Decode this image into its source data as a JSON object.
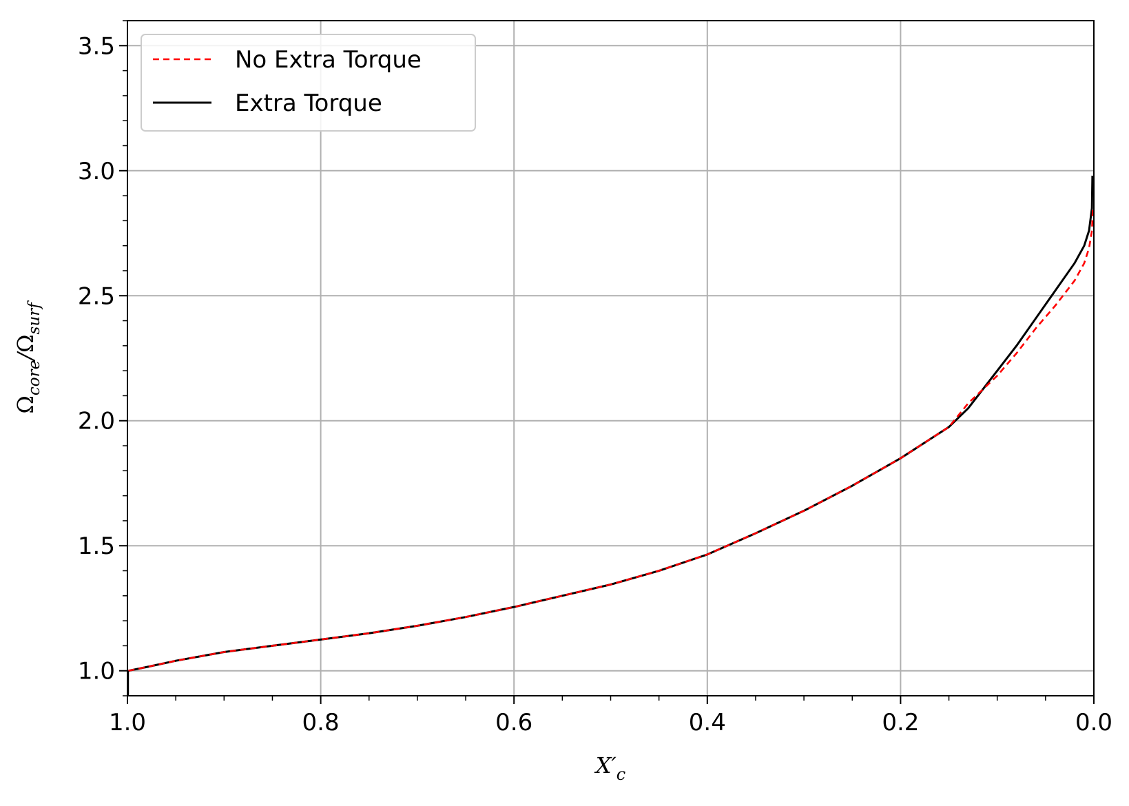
{
  "chart_data": {
    "type": "line",
    "xlabel": "X′_c",
    "ylabel": "Ω_core/Ω_surf",
    "xlim": [
      1.0,
      0.0
    ],
    "ylim": [
      0.9,
      3.6
    ],
    "x_inverted": true,
    "grid": true,
    "legend_position": "top-left",
    "x_ticks": [
      1.0,
      0.8,
      0.6,
      0.4,
      0.2,
      0.0
    ],
    "x_tick_labels": [
      "1.0",
      "0.8",
      "0.6",
      "0.4",
      "0.2",
      "0.0"
    ],
    "y_ticks": [
      1.0,
      1.5,
      2.0,
      2.5,
      3.0,
      3.5
    ],
    "y_tick_labels": [
      "1.0",
      "1.5",
      "2.0",
      "2.5",
      "3.0",
      "3.5"
    ],
    "x_minor_step": 0.05,
    "y_minor_step": 0.1,
    "series": [
      {
        "name": "No Extra Torque",
        "color": "#ff0000",
        "style": "dashed",
        "x": [
          0.999,
          0.98,
          0.95,
          0.9,
          0.85,
          0.8,
          0.75,
          0.7,
          0.65,
          0.6,
          0.55,
          0.5,
          0.45,
          0.4,
          0.35,
          0.3,
          0.25,
          0.2,
          0.15,
          0.13,
          0.1,
          0.08,
          0.06,
          0.04,
          0.02,
          0.01,
          0.005,
          0.002,
          0.001
        ],
        "y": [
          1.0,
          1.015,
          1.04,
          1.075,
          1.1,
          1.125,
          1.15,
          1.18,
          1.215,
          1.255,
          1.3,
          1.345,
          1.4,
          1.465,
          1.55,
          1.64,
          1.74,
          1.85,
          1.975,
          2.07,
          2.18,
          2.27,
          2.37,
          2.46,
          2.56,
          2.63,
          2.69,
          2.76,
          2.85
        ]
      },
      {
        "name": "Extra Torque",
        "color": "#000000",
        "style": "solid",
        "x": [
          0.999,
          0.98,
          0.95,
          0.9,
          0.85,
          0.8,
          0.75,
          0.7,
          0.65,
          0.6,
          0.55,
          0.5,
          0.45,
          0.4,
          0.35,
          0.3,
          0.25,
          0.2,
          0.15,
          0.13,
          0.1,
          0.08,
          0.06,
          0.04,
          0.02,
          0.01,
          0.005,
          0.002,
          0.0015
        ],
        "y": [
          1.0,
          1.015,
          1.04,
          1.075,
          1.1,
          1.125,
          1.15,
          1.18,
          1.215,
          1.255,
          1.3,
          1.345,
          1.4,
          1.465,
          1.55,
          1.64,
          1.74,
          1.85,
          1.975,
          2.05,
          2.2,
          2.3,
          2.41,
          2.52,
          2.63,
          2.7,
          2.76,
          2.85,
          2.98
        ]
      }
    ]
  }
}
